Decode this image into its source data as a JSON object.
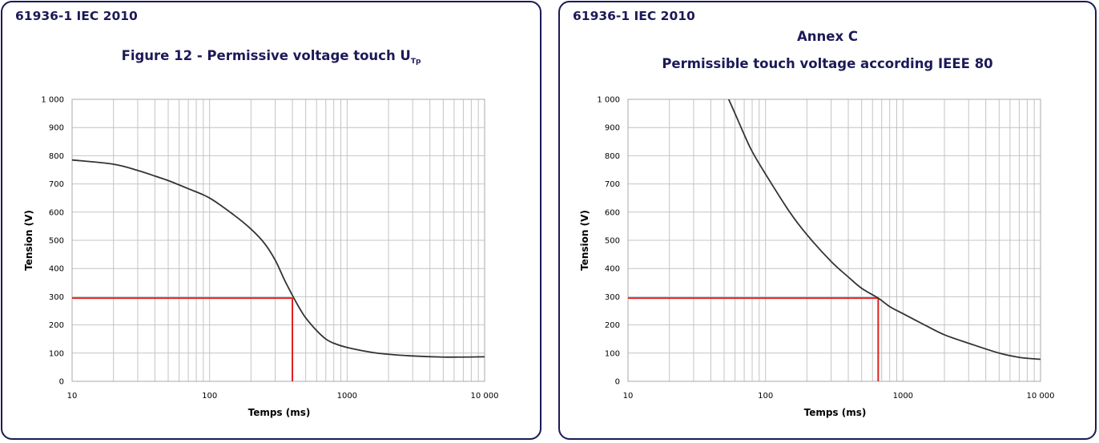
{
  "colors": {
    "border": "#1c1a57",
    "title": "#1c1a57",
    "curve": "#333333",
    "highlight": "#e02020",
    "grid": "#c4c4c4"
  },
  "chart_data": [
    {
      "type": "line",
      "standard": "61936-1 IEC 2010",
      "title": "Figure 12 - Permissive voltage touch U",
      "title_subscript": "Tp",
      "xlabel": "Temps (ms)",
      "ylabel": "Tension (V)",
      "xscale": "log",
      "xlim": [
        10,
        10000
      ],
      "ylim": [
        0,
        1000
      ],
      "xticks": [
        10,
        100,
        1000,
        10000
      ],
      "xtick_labels": [
        "10",
        "100",
        "1000",
        "10 000"
      ],
      "yticks": [
        0,
        100,
        200,
        300,
        400,
        500,
        600,
        700,
        800,
        900,
        1000
      ],
      "ytick_labels": [
        "0",
        "100",
        "200",
        "300",
        "400",
        "500",
        "600",
        "700",
        "800",
        "900",
        "1 000"
      ],
      "grid": true,
      "series": [
        {
          "x": [
            10,
            20,
            30,
            40,
            50,
            70,
            100,
            150,
            200,
            250,
            300,
            350,
            400,
            450,
            500,
            600,
            700,
            800,
            1000,
            1500,
            2000,
            3000,
            5000,
            7000,
            10000
          ],
          "y": [
            785,
            770,
            748,
            728,
            712,
            683,
            650,
            590,
            540,
            490,
            430,
            360,
            305,
            260,
            225,
            180,
            150,
            135,
            120,
            103,
            96,
            90,
            86,
            86,
            87
          ]
        }
      ],
      "highlight": {
        "x": 400,
        "y": 295
      }
    },
    {
      "type": "line",
      "standard": "61936-1 IEC 2010",
      "subtitle": "Annex C",
      "title": "Permissible touch voltage according IEEE 80",
      "xlabel": "Temps (ms)",
      "ylabel": "Tension (V)",
      "xscale": "log",
      "xlim": [
        10,
        10000
      ],
      "ylim": [
        0,
        1000
      ],
      "xticks": [
        10,
        100,
        1000,
        10000
      ],
      "xtick_labels": [
        "10",
        "100",
        "1000",
        "10 000"
      ],
      "yticks": [
        0,
        100,
        200,
        300,
        400,
        500,
        600,
        700,
        800,
        900,
        1000
      ],
      "ytick_labels": [
        "0",
        "100",
        "200",
        "300",
        "400",
        "500",
        "600",
        "700",
        "800",
        "900",
        "1 000"
      ],
      "grid": true,
      "series": [
        {
          "x": [
            54,
            60,
            70,
            80,
            100,
            150,
            200,
            300,
            400,
            500,
            660,
            800,
            1000,
            1500,
            2000,
            3000,
            5000,
            7000,
            10000
          ],
          "y": [
            1000,
            950,
            875,
            815,
            735,
            600,
            520,
            425,
            370,
            330,
            295,
            265,
            240,
            195,
            165,
            135,
            100,
            85,
            78
          ]
        }
      ],
      "highlight": {
        "x": 660,
        "y": 295
      }
    }
  ]
}
